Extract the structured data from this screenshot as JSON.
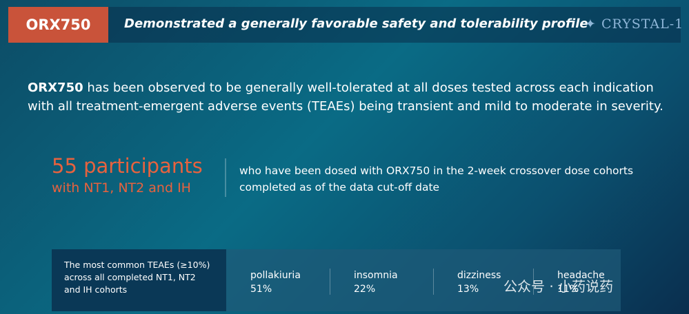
{
  "header": {
    "tag": "ORX750",
    "title": "Demonstrated a generally favorable safety and tolerability profile",
    "logo": "CRYSTAL-1"
  },
  "intro": {
    "bold": "ORX750",
    "text": " has been observed to be generally well-tolerated at all doses tested across each indication with all treatment-emergent adverse events (TEAEs) being transient and mild to moderate in severity."
  },
  "highlight": {
    "headline": "55 participants",
    "subline": "with NT1, NT2 and IH",
    "description": "who have been dosed with ORX750 in the 2-week crossover dose cohorts completed as of the data cut-off date"
  },
  "teae": {
    "label": "The most common TEAEs (≥10%) across all completed NT1, NT2 and IH cohorts",
    "items": [
      {
        "name": "pollakiuria",
        "percent": "51%"
      },
      {
        "name": "insomnia",
        "percent": "22%"
      },
      {
        "name": "dizziness",
        "percent": "13%"
      },
      {
        "name": "headache",
        "percent": "11%"
      }
    ]
  },
  "watermark": "公众号 · 小药说药"
}
